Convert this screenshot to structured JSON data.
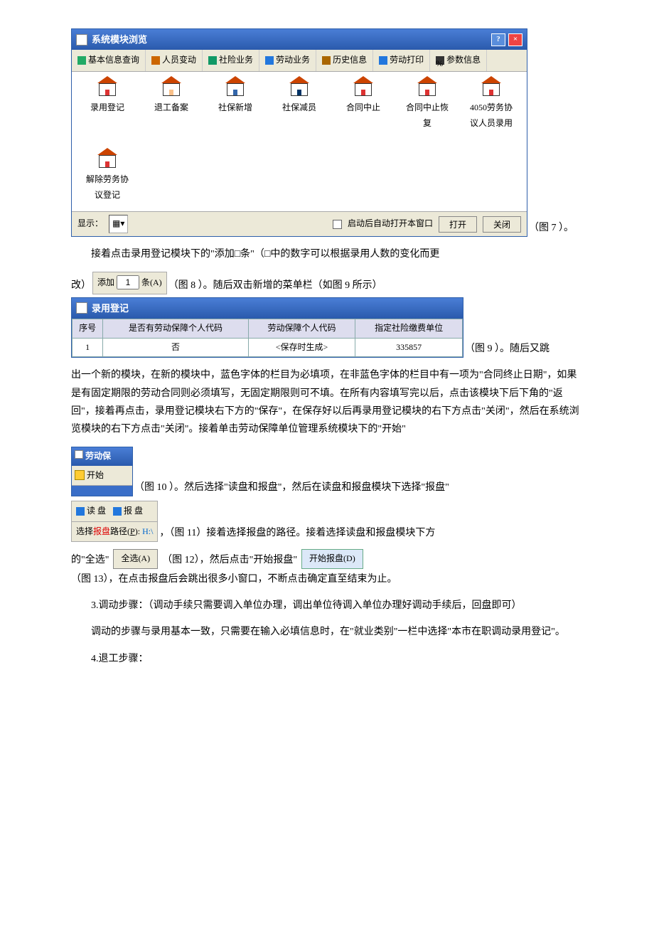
{
  "figure7": {
    "title": "系统模块浏览",
    "menus": [
      "基本信息查询",
      "人员变动",
      "社险业务",
      "劳动业务",
      "历史信息",
      "劳动打印",
      "参数信息"
    ],
    "icons": [
      {
        "label": "录用登记",
        "door": "d-red"
      },
      {
        "label": "退工备案",
        "door": "d-skin"
      },
      {
        "label": "社保新增",
        "door": "d-blue"
      },
      {
        "label": "社保减员",
        "door": "d-navy"
      },
      {
        "label": "合同中止",
        "door": "d-red"
      },
      {
        "label": "合同中止恢复",
        "door": "d-red"
      },
      {
        "label": "4050劳务协议人员录用",
        "door": "d-red"
      },
      {
        "label": "解除劳务协议登记",
        "door": "d-red"
      }
    ],
    "show_label": "显示：",
    "checkbox_label": "启动后自动打开本窗口",
    "open_btn": "打开",
    "close_btn": "关闭"
  },
  "caption7": "（图 7 ）。",
  "para1": "接着点击录用登记模块下的\"添加□条\"（□中的数字可以根据录用人数的变化而更",
  "addbar": {
    "prefix": "添加",
    "value": "1",
    "suffix": "条(A)"
  },
  "para2_a": "改）",
  "para2_b": "（图 8 ）。随后双击新增的菜单栏（如图 9 所示）",
  "figure9": {
    "title": "录用登记",
    "headers": [
      "序号",
      "是否有劳动保障个人代码",
      "劳动保障个人代码",
      "指定社险缴费单位"
    ],
    "row": [
      "1",
      "否",
      "<保存时生成>",
      "335857"
    ]
  },
  "para3_a": "（图 9 ）。随后又跳",
  "para3": "出一个新的模块，在新的模块中，蓝色字体的栏目为必填项，在非蓝色字体的栏目中有一项为\"合同终止日期\"，如果是有固定期限的劳动合同则必须填写，无固定期限则可不填。在所有内容填写完以后，点击该模块下后下角的\"返回\"，接着再点击，录用登记模块右下方的\"保存\"，在保存好以后再录用登记模块的右下方点击\"关闭\"，然后在系统浏览模块的右下方点击\"关闭\"。接着单击劳动保障单位管理系统模块下的\"开始\"",
  "figure10": {
    "title": "劳动保",
    "start": "开始"
  },
  "para4": "（图 10 ）。然后选择\"读盘和报盘\"，然后在读盘和报盘模块下选择\"报盘\"",
  "figure11": {
    "read": "读 盘",
    "write": "报 盘",
    "path_label": "选择报盘路径(P):",
    "path": "H:\\"
  },
  "para5": "，（图 11）接着选择报盘的路径。接着选择读盘和报盘模块下方",
  "quanxuan": "全选(A)",
  "kaishibaopan": "开始报盘(D)",
  "para6_a": "的\"全选\"",
  "para6_b": "（图 12），然后点击\"开始报盘\"",
  "para6_c": "（图 13），在点击报盘后会跳出很多小窗口，不断点击确定直至结束为止。",
  "para7": "3.调动步骤：（调动手续只需要调入单位办理，调出单位待调入单位办理好调动手续后，回盘即可）",
  "para8": "调动的步骤与录用基本一致，只需要在输入必填信息时，在\"就业类别\"一栏中选择\"本市在职调动录用登记\"。",
  "para9": "4.退工步骤："
}
